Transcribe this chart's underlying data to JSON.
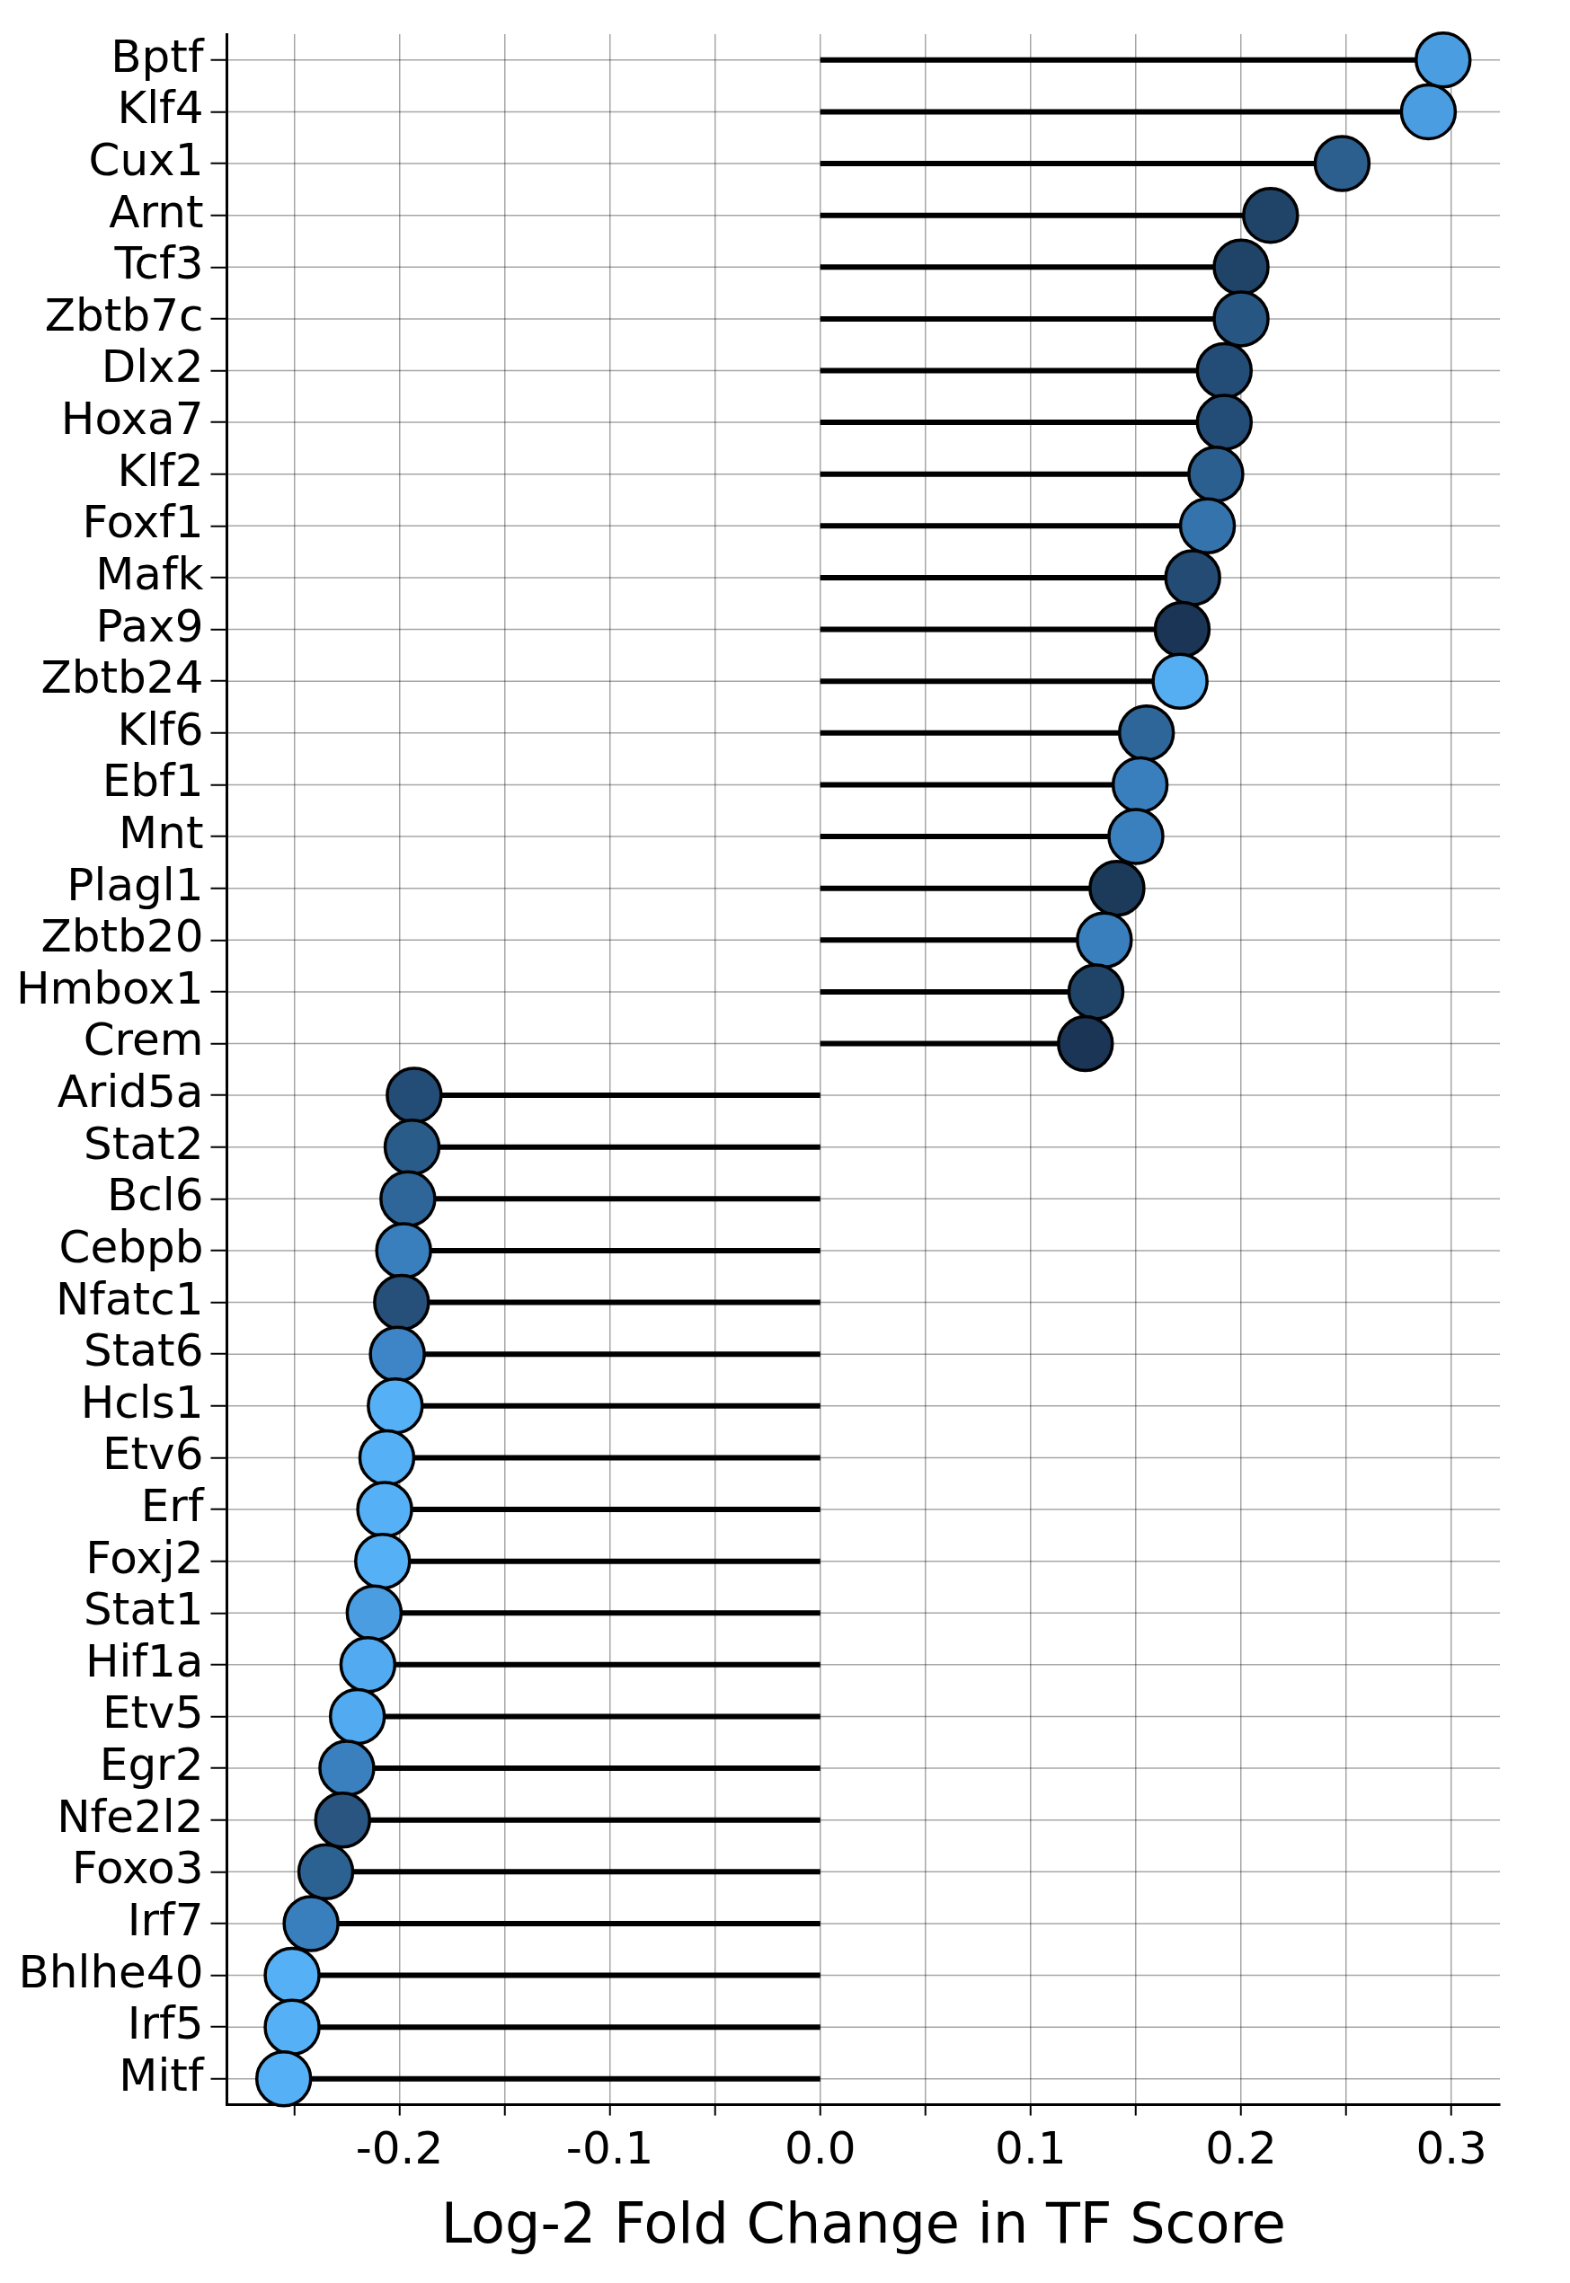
{
  "chart_data": {
    "type": "lollipop",
    "orientation": "horizontal",
    "xlabel": "Log-2 Fold Change in TF Score",
    "categories": [
      "Bptf",
      "Klf4",
      "Cux1",
      "Arnt",
      "Tcf3",
      "Zbtb7c",
      "Dlx2",
      "Hoxa7",
      "Klf2",
      "Foxf1",
      "Mafk",
      "Pax9",
      "Zbtb24",
      "Klf6",
      "Ebf1",
      "Mnt",
      "Plagl1",
      "Zbtb20",
      "Hmbox1",
      "Crem",
      "Arid5a",
      "Stat2",
      "Bcl6",
      "Cebpb",
      "Nfatc1",
      "Stat6",
      "Hcls1",
      "Etv6",
      "Erf",
      "Foxj2",
      "Stat1",
      "Hif1a",
      "Etv5",
      "Egr2",
      "Nfe2l2",
      "Foxo3",
      "Irf7",
      "Bhlhe40",
      "Irf5",
      "Mitf"
    ],
    "values": [
      0.296,
      0.289,
      0.248,
      0.214,
      0.2,
      0.2,
      0.192,
      0.192,
      0.188,
      0.184,
      0.177,
      0.172,
      0.171,
      0.155,
      0.152,
      0.15,
      0.141,
      0.135,
      0.131,
      0.126,
      -0.193,
      -0.194,
      -0.196,
      -0.198,
      -0.199,
      -0.201,
      -0.202,
      -0.206,
      -0.207,
      -0.208,
      -0.212,
      -0.215,
      -0.22,
      -0.225,
      -0.227,
      -0.235,
      -0.242,
      -0.251,
      -0.251,
      -0.255
    ],
    "colors": [
      "#4a9de0",
      "#4a9de0",
      "#2c5f8e",
      "#1f4468",
      "#1f4468",
      "#285683",
      "#234c76",
      "#234c76",
      "#2a5f90",
      "#3473ac",
      "#234b74",
      "#1a3555",
      "#55aef2",
      "#2e6699",
      "#3a7fbd",
      "#3b80be",
      "#1c3a5a",
      "#3a7fbd",
      "#1f4468",
      "#1a3555",
      "#234c76",
      "#2a5c8a",
      "#2e6699",
      "#3a7fbd",
      "#264f7a",
      "#3d85c6",
      "#56b0f5",
      "#56b0f5",
      "#56b0f5",
      "#56b0f5",
      "#4a9de0",
      "#52aaf0",
      "#52aaf0",
      "#3b80be",
      "#2a5580",
      "#2c6292",
      "#3a7fbd",
      "#56b0f5",
      "#56b0f5",
      "#56b0f5"
    ],
    "xlim": [
      -0.282,
      0.323
    ],
    "xticks": [
      {
        "value": -0.25,
        "label": null
      },
      {
        "value": -0.2,
        "label": "-0.2"
      },
      {
        "value": -0.15,
        "label": null
      },
      {
        "value": -0.1,
        "label": "-0.1"
      },
      {
        "value": -0.05,
        "label": null
      },
      {
        "value": 0,
        "label": "0.0"
      },
      {
        "value": 0.05,
        "label": null
      },
      {
        "value": 0.1,
        "label": "0.1"
      },
      {
        "value": 0.15,
        "label": null
      },
      {
        "value": 0.2,
        "label": "0.2"
      },
      {
        "value": 0.25,
        "label": null
      },
      {
        "value": 0.3,
        "label": "0.3"
      }
    ],
    "grid": true,
    "marker": "circle",
    "legend": false
  }
}
